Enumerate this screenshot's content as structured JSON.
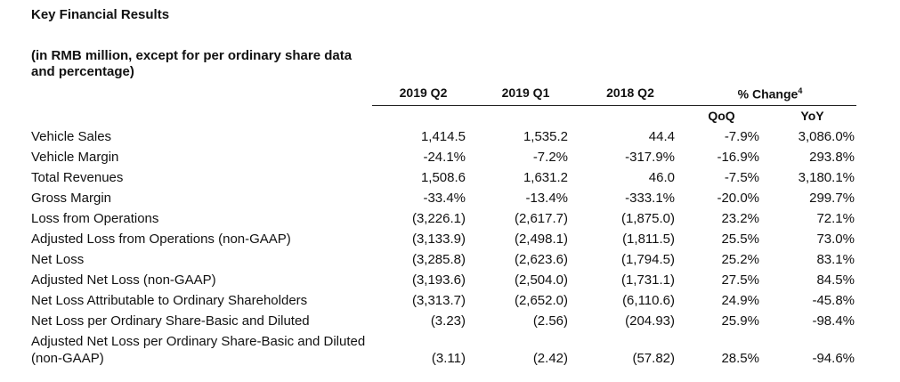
{
  "title": "Key Financial Results",
  "subtitle": "(in RMB million, except for per ordinary share data and percentage)",
  "columns": [
    "2019 Q2",
    "2019 Q1",
    "2018 Q2",
    "% Change"
  ],
  "change_footnote": "4",
  "subcolumns": [
    "QoQ",
    "YoY"
  ],
  "rows": [
    {
      "label": "Vehicle Sales",
      "q2_2019": "1,414.5",
      "q1_2019": "1,535.2",
      "q2_2018": "44.4",
      "qoq": "-7.9%",
      "yoy": "3,086.0%"
    },
    {
      "label": "Vehicle Margin",
      "q2_2019": "-24.1%",
      "q1_2019": "-7.2%",
      "q2_2018": "-317.9%",
      "qoq": "-16.9%",
      "yoy": "293.8%"
    },
    {
      "label": "Total Revenues",
      "q2_2019": "1,508.6",
      "q1_2019": "1,631.2",
      "q2_2018": "46.0",
      "qoq": "-7.5%",
      "yoy": "3,180.1%"
    },
    {
      "label": "Gross Margin",
      "q2_2019": "-33.4%",
      "q1_2019": "-13.4%",
      "q2_2018": "-333.1%",
      "qoq": "-20.0%",
      "yoy": "299.7%"
    },
    {
      "label": "Loss from Operations",
      "q2_2019": "(3,226.1)",
      "q1_2019": "(2,617.7)",
      "q2_2018": "(1,875.0)",
      "qoq": "23.2%",
      "yoy": "72.1%"
    },
    {
      "label": "Adjusted Loss from Operations (non-GAAP)",
      "q2_2019": "(3,133.9)",
      "q1_2019": "(2,498.1)",
      "q2_2018": "(1,811.5)",
      "qoq": "25.5%",
      "yoy": "73.0%"
    },
    {
      "label": "Net Loss",
      "q2_2019": "(3,285.8)",
      "q1_2019": "(2,623.6)",
      "q2_2018": "(1,794.5)",
      "qoq": "25.2%",
      "yoy": "83.1%"
    },
    {
      "label": "Adjusted Net Loss (non-GAAP)",
      "q2_2019": "(3,193.6)",
      "q1_2019": "(2,504.0)",
      "q2_2018": "(1,731.1)",
      "qoq": "27.5%",
      "yoy": "84.5%"
    },
    {
      "label": "Net Loss Attributable to Ordinary Shareholders",
      "q2_2019": "(3,313.7)",
      "q1_2019": "(2,652.0)",
      "q2_2018": "(6,110.6)",
      "qoq": "24.9%",
      "yoy": "-45.8%"
    },
    {
      "label": "Net Loss per Ordinary Share-Basic and Diluted",
      "q2_2019": "(3.23)",
      "q1_2019": "(2.56)",
      "q2_2018": "(204.93)",
      "qoq": "25.9%",
      "yoy": "-98.4%"
    },
    {
      "label": "Adjusted Net Loss per Ordinary Share-Basic and Diluted (non-GAAP)",
      "q2_2019": "(3.11)",
      "q1_2019": "(2.42)",
      "q2_2018": "(57.82)",
      "qoq": "28.5%",
      "yoy": "-94.6%"
    }
  ]
}
